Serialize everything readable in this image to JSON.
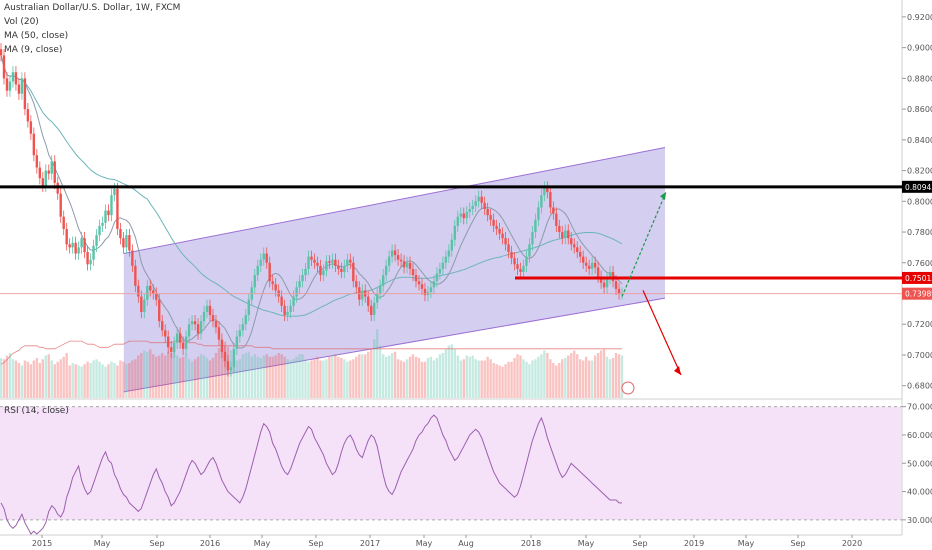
{
  "header": {
    "symbol": "Australian Dollar/U.S. Dollar, 1W, FXCM",
    "indicators": [
      "Vol (20)",
      "MA (50, close)",
      "MA (9, close)"
    ]
  },
  "rsi_label": "RSI (14, close)",
  "colors": {
    "up": "#59c3a8",
    "down": "#ef5350",
    "channel_fill": "#b7aee6",
    "channel_line": "#9b6fd4",
    "rsi_band": "#f1d8f7",
    "rsi_line": "#9b5fae",
    "ma50": "#6cb5b9",
    "ma9": "#8e9aab",
    "resistance": "#000000",
    "support": "#e60000",
    "target_up": "#1d9b4a",
    "target_down": "#e60000"
  },
  "price_badges": {
    "resistance": "0.80943",
    "support": "0.75013",
    "current": "0.73989"
  },
  "chart_data": [
    {
      "type": "candlestick",
      "title": "Australian Dollar/U.S. Dollar, 1W, FXCM",
      "x_ticks": [
        "2015",
        "May",
        "Sep",
        "2016",
        "May",
        "Sep",
        "2017",
        "May",
        "Aug",
        "2018",
        "May",
        "Sep",
        "2019",
        "May",
        "Sep",
        "2020"
      ],
      "y_ticks": [
        "0.92000",
        "0.90000",
        "0.88000",
        "0.86000",
        "0.84000",
        "0.82000",
        "0.80000",
        "0.78000",
        "0.76000",
        "0.74000",
        "0.72000",
        "0.70000",
        "0.68000"
      ],
      "ylim": [
        0.672,
        0.931
      ],
      "levels": {
        "resistance": 0.80943,
        "support": 0.75013,
        "current": 0.73989
      },
      "closes": [
        0.895,
        0.88,
        0.872,
        0.878,
        0.884,
        0.876,
        0.87,
        0.88,
        0.86,
        0.852,
        0.844,
        0.83,
        0.822,
        0.815,
        0.81,
        0.82,
        0.818,
        0.826,
        0.812,
        0.805,
        0.79,
        0.782,
        0.772,
        0.77,
        0.773,
        0.766,
        0.77,
        0.776,
        0.767,
        0.759,
        0.762,
        0.771,
        0.778,
        0.784,
        0.786,
        0.794,
        0.791,
        0.804,
        0.808,
        0.782,
        0.776,
        0.77,
        0.778,
        0.768,
        0.758,
        0.745,
        0.738,
        0.728,
        0.736,
        0.745,
        0.742,
        0.74,
        0.736,
        0.722,
        0.716,
        0.712,
        0.705,
        0.702,
        0.708,
        0.714,
        0.708,
        0.704,
        0.712,
        0.72,
        0.722,
        0.72,
        0.714,
        0.722,
        0.728,
        0.732,
        0.726,
        0.722,
        0.718,
        0.71,
        0.702,
        0.696,
        0.69,
        0.692,
        0.704,
        0.712,
        0.716,
        0.72,
        0.726,
        0.736,
        0.744,
        0.752,
        0.758,
        0.762,
        0.766,
        0.76,
        0.748,
        0.746,
        0.742,
        0.738,
        0.732,
        0.726,
        0.728,
        0.732,
        0.738,
        0.744,
        0.748,
        0.752,
        0.756,
        0.764,
        0.762,
        0.76,
        0.758,
        0.752,
        0.755,
        0.761,
        0.76,
        0.762,
        0.758,
        0.756,
        0.754,
        0.758,
        0.762,
        0.76,
        0.748,
        0.744,
        0.736,
        0.742,
        0.738,
        0.732,
        0.726,
        0.734,
        0.74,
        0.745,
        0.752,
        0.758,
        0.764,
        0.768,
        0.765,
        0.762,
        0.761,
        0.757,
        0.76,
        0.756,
        0.752,
        0.748,
        0.746,
        0.743,
        0.739,
        0.741,
        0.744,
        0.748,
        0.753,
        0.756,
        0.76,
        0.764,
        0.768,
        0.775,
        0.784,
        0.79,
        0.792,
        0.789,
        0.793,
        0.795,
        0.797,
        0.8,
        0.803,
        0.799,
        0.795,
        0.791,
        0.788,
        0.784,
        0.782,
        0.779,
        0.776,
        0.772,
        0.767,
        0.763,
        0.759,
        0.756,
        0.754,
        0.758,
        0.764,
        0.772,
        0.78,
        0.788,
        0.796,
        0.804,
        0.809,
        0.806,
        0.796,
        0.792,
        0.784,
        0.78,
        0.776,
        0.781,
        0.776,
        0.772,
        0.77,
        0.767,
        0.764,
        0.76,
        0.758,
        0.756,
        0.76,
        0.757,
        0.751,
        0.747,
        0.744,
        0.75,
        0.754,
        0.748,
        0.743,
        0.74,
        0.74
      ]
    },
    {
      "type": "bar",
      "title": "Vol (20)",
      "ylabel": "",
      "values": [
        32,
        31,
        34,
        36,
        31,
        30,
        28,
        26,
        30,
        29,
        27,
        30,
        32,
        28,
        31,
        34,
        35,
        30,
        27,
        29,
        31,
        33,
        36,
        26,
        28,
        27,
        26,
        25,
        27,
        29,
        28,
        30,
        31,
        29,
        27,
        25,
        27,
        29,
        28,
        26,
        30,
        29,
        27,
        28,
        30,
        31,
        34,
        36,
        38,
        37,
        39,
        35,
        33,
        34,
        36,
        34,
        37,
        36,
        38,
        34,
        32,
        33,
        35,
        31,
        29,
        31,
        33,
        35,
        34,
        32,
        30,
        32,
        36,
        40,
        43,
        45,
        41,
        38,
        33,
        30,
        31,
        35,
        36,
        37,
        33,
        35,
        33,
        32,
        34,
        35,
        33,
        33,
        34,
        36,
        35,
        33,
        31,
        30,
        31,
        33,
        35,
        35,
        31,
        29,
        30,
        31,
        33,
        30,
        30,
        31,
        33,
        34,
        35,
        33,
        32,
        31,
        29,
        30,
        31,
        33,
        35,
        35,
        35,
        37,
        39,
        47,
        55,
        42,
        35,
        33,
        34,
        36,
        37,
        31,
        30,
        29,
        31,
        33,
        35,
        33,
        32,
        29,
        29,
        32,
        33,
        30,
        32,
        35,
        36,
        39,
        42,
        43,
        39,
        34,
        30,
        31,
        34,
        33,
        34,
        31,
        30,
        30,
        30,
        33,
        31,
        28,
        27,
        26,
        25,
        27,
        29,
        29,
        32,
        35,
        34,
        31,
        29,
        27,
        30,
        31,
        33,
        35,
        38,
        36,
        31,
        28,
        26,
        28,
        31,
        32,
        34,
        36,
        38,
        35,
        31,
        30,
        33,
        30,
        30,
        34,
        36,
        38,
        39,
        33,
        31,
        32,
        36,
        35,
        34,
        32,
        30,
        30,
        33,
        36,
        37,
        37,
        35,
        34
      ],
      "ma20": [
        0.694,
        0.695,
        0.697,
        0.699,
        0.701,
        0.702,
        0.703,
        0.705,
        0.706,
        0.706,
        0.706,
        0.706,
        0.706,
        0.705,
        0.705,
        0.704,
        0.704,
        0.704,
        0.704,
        0.705,
        0.706,
        0.707,
        0.708,
        0.709,
        0.709,
        0.709,
        0.709,
        0.709,
        0.708,
        0.707,
        0.707,
        0.707,
        0.706,
        0.705,
        0.705,
        0.705,
        0.705,
        0.706,
        0.707,
        0.707,
        0.707,
        0.707,
        0.708,
        0.709,
        0.709,
        0.709,
        0.709,
        0.709,
        0.709,
        0.709,
        0.708,
        0.708,
        0.708,
        0.708,
        0.708,
        0.708,
        0.708,
        0.708,
        0.709,
        0.709,
        0.709,
        0.709,
        0.709,
        0.708,
        0.708,
        0.708,
        0.707,
        0.707,
        0.706,
        0.706,
        0.706,
        0.706,
        0.706,
        0.706,
        0.706,
        0.706,
        0.706,
        0.706,
        0.706,
        0.706,
        0.706,
        0.706,
        0.706,
        0.706,
        0.706,
        0.705,
        0.705,
        0.705,
        0.705,
        0.705,
        0.705,
        0.704,
        0.704,
        0.704,
        0.704,
        0.704,
        0.704,
        0.704,
        0.704,
        0.704,
        0.704,
        0.704,
        0.704,
        0.704,
        0.704,
        0.704,
        0.704,
        0.704,
        0.704,
        0.704,
        0.704,
        0.704,
        0.704,
        0.704,
        0.704,
        0.704,
        0.704,
        0.704,
        0.704,
        0.704,
        0.704,
        0.704,
        0.704,
        0.704,
        0.704,
        0.704,
        0.704,
        0.704,
        0.704,
        0.704,
        0.704,
        0.704,
        0.704,
        0.704,
        0.704,
        0.704,
        0.704,
        0.704,
        0.704,
        0.704,
        0.704,
        0.704,
        0.704,
        0.704,
        0.704,
        0.704,
        0.704,
        0.704,
        0.704,
        0.704,
        0.704,
        0.704,
        0.704,
        0.704,
        0.704,
        0.704,
        0.704,
        0.704,
        0.704,
        0.704,
        0.704,
        0.704,
        0.704,
        0.704,
        0.704,
        0.704,
        0.704,
        0.704,
        0.704,
        0.704,
        0.704,
        0.704,
        0.704,
        0.704,
        0.704,
        0.704,
        0.704,
        0.704,
        0.704,
        0.704,
        0.704,
        0.704,
        0.704,
        0.704,
        0.704,
        0.704,
        0.704,
        0.704,
        0.704,
        0.704,
        0.704,
        0.704,
        0.704,
        0.704,
        0.704,
        0.704,
        0.704,
        0.704,
        0.704,
        0.704,
        0.704,
        0.704,
        0.704,
        0.704,
        0.704,
        0.704,
        0.704,
        0.704,
        0.704,
        0.704,
        0.704,
        0.704,
        0.704,
        0.704
      ]
    },
    {
      "type": "line",
      "title": "RSI (14, close)",
      "y_ticks": [
        "70.0000",
        "60.0000",
        "50.0000",
        "40.0000",
        "30.0000"
      ],
      "ylim": [
        25,
        72
      ],
      "band": [
        30,
        70
      ],
      "values": [
        36,
        34,
        30,
        28,
        27,
        28,
        30,
        32,
        29,
        27,
        25,
        26,
        25,
        26,
        27,
        29,
        33,
        35,
        34,
        32,
        31,
        33,
        38,
        41,
        45,
        47,
        49,
        44,
        41,
        39,
        40,
        43,
        46,
        49,
        52,
        54,
        51,
        50,
        46,
        44,
        41,
        39,
        38,
        36,
        35,
        34,
        33,
        34,
        37,
        40,
        43,
        46,
        48,
        45,
        43,
        40,
        38,
        35,
        36,
        38,
        40,
        43,
        46,
        49,
        51,
        50,
        48,
        46,
        47,
        49,
        51,
        52,
        50,
        47,
        44,
        42,
        40,
        39,
        38,
        37,
        36,
        38,
        41,
        45,
        49,
        53,
        57,
        61,
        64,
        63,
        61,
        57,
        55,
        52,
        49,
        47,
        46,
        48,
        51,
        54,
        57,
        59,
        61,
        63,
        62,
        59,
        57,
        55,
        53,
        50,
        48,
        46,
        47,
        50,
        54,
        57,
        59,
        60,
        58,
        55,
        53,
        52,
        55,
        58,
        60,
        59,
        56,
        51,
        46,
        42,
        40,
        39,
        41,
        44,
        47,
        49,
        51,
        53,
        55,
        58,
        60,
        61,
        63,
        64,
        66,
        67,
        66,
        63,
        60,
        58,
        55,
        53,
        51,
        52,
        54,
        56,
        58,
        60,
        61,
        62,
        61,
        59,
        56,
        53,
        50,
        47,
        45,
        43,
        42,
        41,
        40,
        39,
        38,
        39,
        42,
        46,
        50,
        54,
        58,
        61,
        64,
        66,
        63,
        59,
        56,
        53,
        50,
        47,
        45,
        46,
        48,
        50,
        49,
        48,
        47,
        46,
        45,
        44,
        43,
        42,
        41,
        40,
        39,
        38,
        37,
        37,
        37,
        36,
        36,
        36,
        36,
        36
      ]
    }
  ]
}
